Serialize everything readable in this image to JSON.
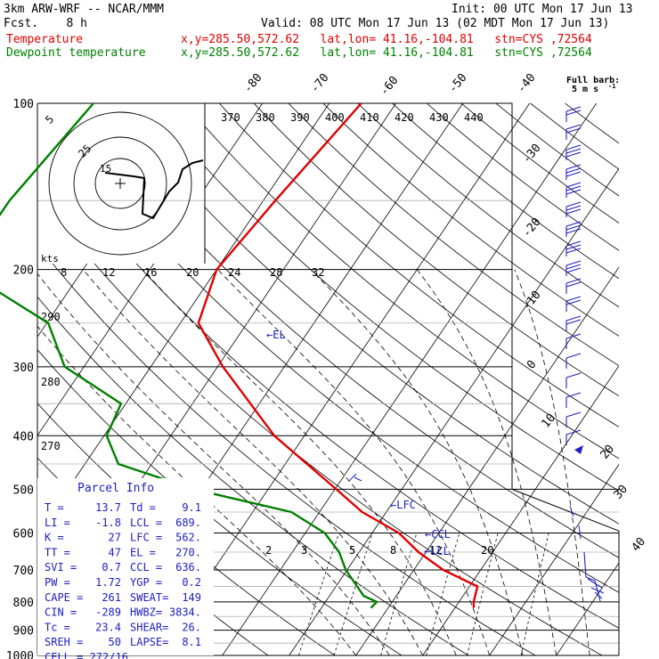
{
  "header": {
    "model": "3km ARW-WRF -- NCAR/MMM",
    "init": "Init: 00 UTC Mon 17 Jun 13",
    "fcst": "Fcst.    8 h",
    "valid": "Valid: 08 UTC Mon 17 Jun 13 (02 MDT Mon 17 Jun 13)",
    "line1_var": "Temperature",
    "line1_loc": "x,y=285.50,572.62   lat,lon= 41.16,-104.81   stn=CYS ,72564",
    "line2_var": "Dewpoint temperature",
    "line2_loc": "x,y=285.50,572.62   lat,lon= 41.16,-104.81   stn=CYS ,72564"
  },
  "colors": {
    "temperature": "#e00000",
    "dewpoint": "#008000",
    "barb": "#2020c0",
    "annot": "#2020c0"
  },
  "chart_data": {
    "type": "line",
    "pressure_labels": [
      "100",
      "200",
      "300",
      "400",
      "500",
      "600",
      "700",
      "800",
      "900",
      "1000"
    ],
    "ylim": [
      1000,
      100
    ],
    "isotherm_labels": [
      "-80",
      "-70",
      "-60",
      "-50",
      "-40",
      "-30",
      "-20",
      "-10",
      "0",
      "10",
      "20",
      "30",
      "40"
    ],
    "theta_labels": [
      "370",
      "380",
      "390",
      "400",
      "410",
      "420",
      "430",
      "440"
    ],
    "theta_low_labels": [
      "290",
      "280",
      "270"
    ],
    "mixing_ratio_labels": [
      "2",
      "3",
      "5",
      "8",
      "12",
      "20"
    ],
    "hodo_speed_labels": [
      "8",
      "12",
      "16",
      "20",
      "24",
      "28",
      "32"
    ],
    "hodo_kts": "kts",
    "hodo_ring_labels": [
      "5",
      "25",
      "15"
    ],
    "full_barb": "Full barb:",
    "full_barb_unit": "5 m s",
    "full_barb_exp": "-1",
    "annotations": {
      "el": "←EL",
      "lfc": "←LFC",
      "ccl": "←CCL",
      "lcl": "←LCL"
    },
    "series": [
      {
        "name": "Temperature",
        "points": [
          [
            100,
            -55.2
          ],
          [
            150,
            -58.2
          ],
          [
            200,
            -60
          ],
          [
            250,
            -57.3
          ],
          [
            300,
            -49.2
          ],
          [
            400,
            -34.5
          ],
          [
            500,
            -19.8
          ],
          [
            550,
            -13.6
          ],
          [
            600,
            -6
          ],
          [
            650,
            -1.1
          ],
          [
            700,
            4.4
          ],
          [
            750,
            11.2
          ],
          [
            780,
            11.8
          ],
          [
            800,
            12.2
          ],
          [
            820,
            12.8
          ]
        ]
      },
      {
        "name": "Dewpoint temperature",
        "points": [
          [
            100,
            -95.3
          ],
          [
            150,
            -98
          ],
          [
            200,
            -98
          ],
          [
            250,
            -79.8
          ],
          [
            300,
            -72.9
          ],
          [
            350,
            -60.7
          ],
          [
            400,
            -59.6
          ],
          [
            450,
            -55
          ],
          [
            500,
            -41.1
          ],
          [
            550,
            -24.2
          ],
          [
            600,
            -17.1
          ],
          [
            650,
            -13
          ],
          [
            700,
            -10.2
          ],
          [
            780,
            -4.9
          ],
          [
            800,
            -2.3
          ],
          [
            820,
            -2.6
          ]
        ]
      }
    ]
  },
  "parcel": {
    "title": "Parcel Info",
    "rows": [
      [
        "T   =",
        "13.7",
        "Td  =",
        "9.1"
      ],
      [
        "LI  =",
        "-1.8",
        "LCL =",
        "689."
      ],
      [
        "K   =",
        "27",
        "LFC =",
        "562."
      ],
      [
        "TT  =",
        "47",
        "EL  =",
        "270."
      ],
      [
        "SVI =",
        "0.7",
        "CCL =",
        "636."
      ],
      [
        "PW  =",
        "1.72",
        "YGP =",
        "0.2"
      ],
      [
        "CAPE =",
        "261",
        "SWEAT=",
        "149"
      ],
      [
        "CIN  =",
        "-289",
        "HWBZ=",
        "3834."
      ],
      [
        "Tc  =",
        "23.4",
        "SHEAR=",
        "26."
      ],
      [
        "SREH =",
        "50",
        "LAPSE=",
        "8.1"
      ]
    ],
    "cell": "CELL = 272/16"
  }
}
